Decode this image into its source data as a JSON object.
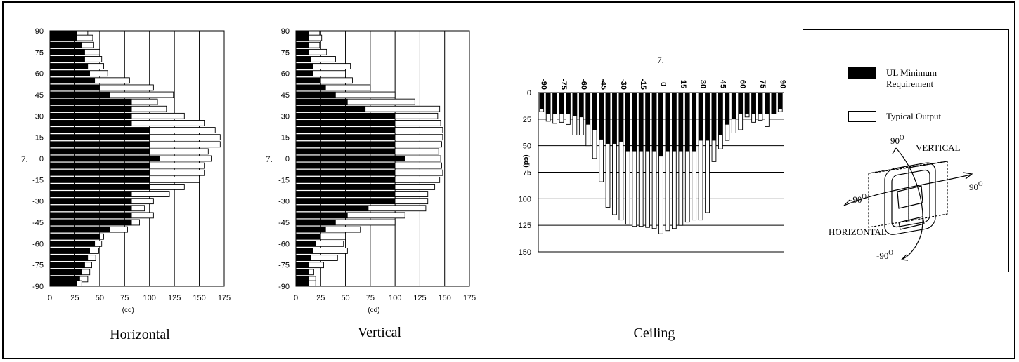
{
  "colors": {
    "minimum": "#000000",
    "typical": "#ffffff",
    "outline": "#000000",
    "grid": "#000000"
  },
  "legend": {
    "minimum_label": "UL Minimum\nRequirement",
    "typical_label": "Typical Output"
  },
  "diagram": {
    "vertical_label": "VERTICAL",
    "horizontal_label": "HORIZONTAL",
    "top_angle": "90",
    "right_angle": "90",
    "left_angle": "-90",
    "bottom_angle": "-90",
    "degree_mark": "O"
  },
  "chart_data": [
    {
      "id": "horizontal",
      "type": "bar",
      "orientation": "horizontal",
      "caption": "Horizontal",
      "xlabel": "(cd)",
      "ylabel": "7.",
      "xlim": [
        0,
        175
      ],
      "xticks": [
        0,
        25,
        50,
        75,
        100,
        125,
        150,
        175
      ],
      "ylim": [
        -90,
        90
      ],
      "yticks": [
        90,
        75,
        60,
        45,
        30,
        15,
        0,
        -15,
        -30,
        -45,
        -60,
        -75,
        -90
      ],
      "angles": [
        90,
        85,
        80,
        75,
        70,
        65,
        60,
        55,
        50,
        45,
        40,
        35,
        30,
        25,
        20,
        15,
        10,
        5,
        0,
        -5,
        -10,
        -15,
        -20,
        -25,
        -30,
        -35,
        -40,
        -45,
        -50,
        -55,
        -60,
        -65,
        -70,
        -75,
        -80,
        -85,
        -90
      ],
      "series": [
        {
          "name": "UL Minimum Requirement",
          "values": [
            27,
            27,
            32,
            35,
            35,
            38,
            40,
            45,
            50,
            60,
            82,
            82,
            82,
            82,
            100,
            100,
            100,
            100,
            110,
            100,
            100,
            100,
            100,
            82,
            82,
            82,
            82,
            82,
            60,
            50,
            45,
            40,
            38,
            35,
            32,
            30,
            27
          ]
        },
        {
          "name": "Typical Output",
          "values": [
            38,
            43,
            44,
            50,
            52,
            54,
            58,
            80,
            104,
            124,
            108,
            117,
            135,
            155,
            166,
            171,
            171,
            159,
            162,
            155,
            155,
            150,
            135,
            120,
            104,
            95,
            104,
            90,
            78,
            54,
            52,
            49,
            46,
            42,
            40,
            38,
            32
          ]
        }
      ],
      "grid": true
    },
    {
      "id": "vertical",
      "type": "bar",
      "orientation": "horizontal",
      "caption": "Vertical",
      "xlabel": "(cd)",
      "ylabel": "7.",
      "xlim": [
        0,
        175
      ],
      "xticks": [
        0,
        25,
        50,
        75,
        100,
        125,
        150,
        175
      ],
      "ylim": [
        -90,
        90
      ],
      "yticks": [
        90,
        75,
        60,
        45,
        30,
        15,
        0,
        -15,
        -30,
        -45,
        -60,
        -75,
        -90
      ],
      "angles": [
        90,
        85,
        80,
        75,
        70,
        65,
        60,
        55,
        50,
        45,
        40,
        35,
        30,
        25,
        20,
        15,
        10,
        5,
        0,
        -5,
        -10,
        -15,
        -20,
        -25,
        -30,
        -35,
        -40,
        -45,
        -50,
        -55,
        -60,
        -65,
        -70,
        -75,
        -80,
        -85,
        -90
      ],
      "series": [
        {
          "name": "UL Minimum Requirement",
          "values": [
            13,
            13,
            13,
            13,
            15,
            17,
            17,
            25,
            30,
            40,
            52,
            70,
            100,
            100,
            100,
            100,
            100,
            100,
            110,
            100,
            100,
            100,
            100,
            100,
            100,
            73,
            52,
            40,
            30,
            25,
            20,
            17,
            15,
            13,
            13,
            13,
            13
          ]
        },
        {
          "name": "Typical Output",
          "values": [
            24,
            26,
            24,
            31,
            40,
            55,
            50,
            57,
            75,
            100,
            120,
            145,
            143,
            146,
            148,
            148,
            147,
            144,
            146,
            147,
            148,
            145,
            140,
            133,
            133,
            131,
            110,
            100,
            65,
            50,
            48,
            52,
            42,
            28,
            18,
            20,
            20
          ]
        }
      ],
      "grid": true
    },
    {
      "id": "ceiling",
      "type": "bar",
      "orientation": "vertical",
      "caption": "Ceiling",
      "xlabel": "7.",
      "ylabel": "(cd)",
      "ylim": [
        0,
        150
      ],
      "y_axis_inverted": true,
      "yticks": [
        0,
        25,
        50,
        75,
        100,
        125,
        150
      ],
      "xticks": [
        -90,
        -75,
        -60,
        -45,
        -30,
        -15,
        0,
        15,
        30,
        45,
        60,
        75,
        90
      ],
      "angles": [
        -90,
        -85,
        -80,
        -75,
        -70,
        -65,
        -60,
        -55,
        -50,
        -45,
        -40,
        -35,
        -30,
        -25,
        -20,
        -15,
        -10,
        -5,
        0,
        5,
        10,
        15,
        20,
        25,
        30,
        35,
        40,
        45,
        50,
        55,
        60,
        65,
        70,
        75,
        80,
        85,
        90
      ],
      "series": [
        {
          "name": "UL Minimum Requirement",
          "values": [
            15,
            20,
            20,
            20,
            20,
            22,
            23,
            30,
            35,
            44,
            48,
            48,
            46,
            55,
            55,
            55,
            55,
            55,
            60,
            55,
            55,
            55,
            55,
            55,
            45,
            45,
            45,
            40,
            30,
            25,
            20,
            20,
            20,
            20,
            20,
            20,
            15
          ]
        },
        {
          "name": "Typical Output",
          "values": [
            18,
            27,
            29,
            28,
            30,
            40,
            40,
            50,
            62,
            84,
            108,
            115,
            120,
            124,
            126,
            126,
            127,
            128,
            133,
            130,
            128,
            125,
            122,
            120,
            120,
            113,
            65,
            53,
            45,
            38,
            35,
            23,
            28,
            26,
            32,
            20,
            18
          ]
        }
      ],
      "grid": true
    }
  ]
}
